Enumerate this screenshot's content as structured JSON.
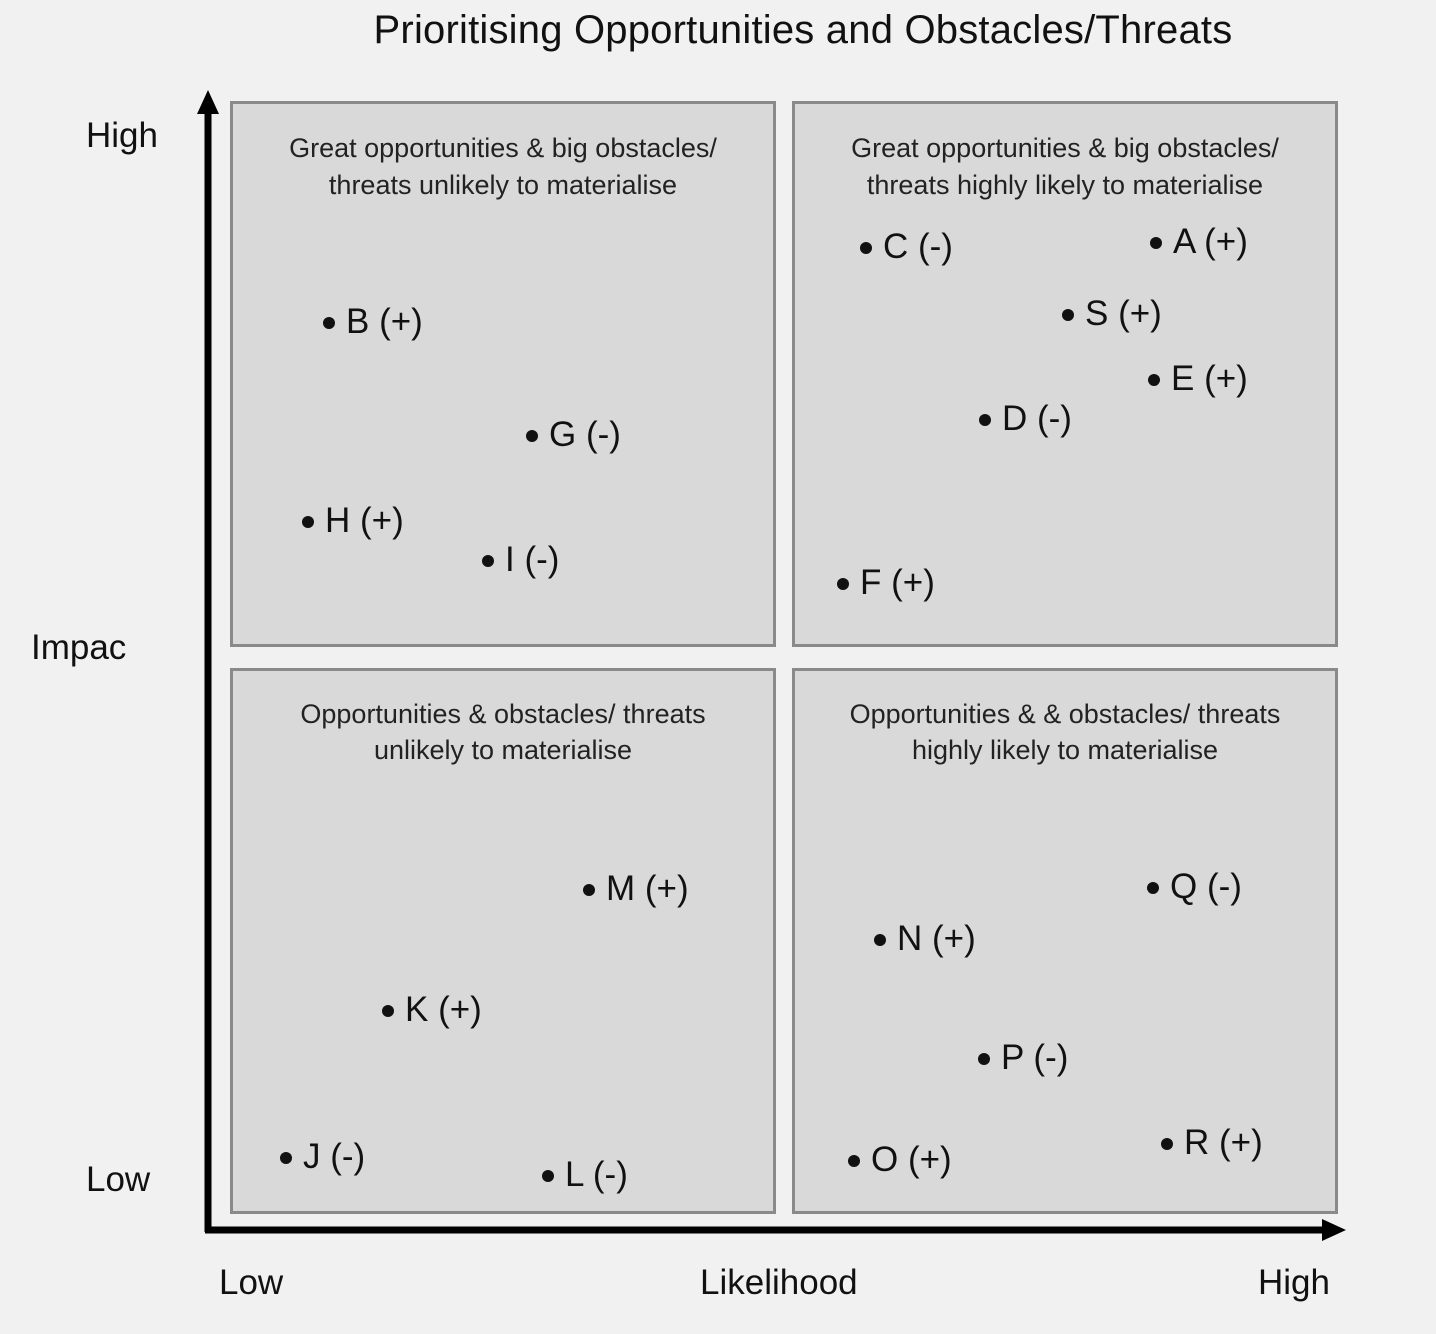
{
  "title": "Prioritising Opportunities and Obstacles/Threats",
  "axes": {
    "y_label": "Impac",
    "y_high": "High",
    "y_low": "Low",
    "x_label": "Likelihood",
    "x_low": "Low",
    "x_high": "High"
  },
  "quadrants": {
    "top_left": "Great opportunities & big obstacles/\nthreats unlikely to materialise",
    "top_right": "Great opportunities & big obstacles/\nthreats highly likely to materialise",
    "bottom_left": "Opportunities & obstacles/ threats\nunlikely to materialise",
    "bottom_right": "Opportunities & & obstacles/ threats\nhighly likely to materialise"
  },
  "points": {
    "A": "A (+)",
    "B": "B (+)",
    "C": "C (-)",
    "D": "D (-)",
    "E": "E (+)",
    "F": "F (+)",
    "G": "G (-)",
    "H": "H (+)",
    "I": "I (-)",
    "J": "J (-)",
    "K": "K (+)",
    "L": "L (-)",
    "M": "M (+)",
    "N": "N (+)",
    "O": "O (+)",
    "P": "P (-)",
    "Q": "Q (-)",
    "R": "R (+)",
    "S": "S (+)"
  }
}
